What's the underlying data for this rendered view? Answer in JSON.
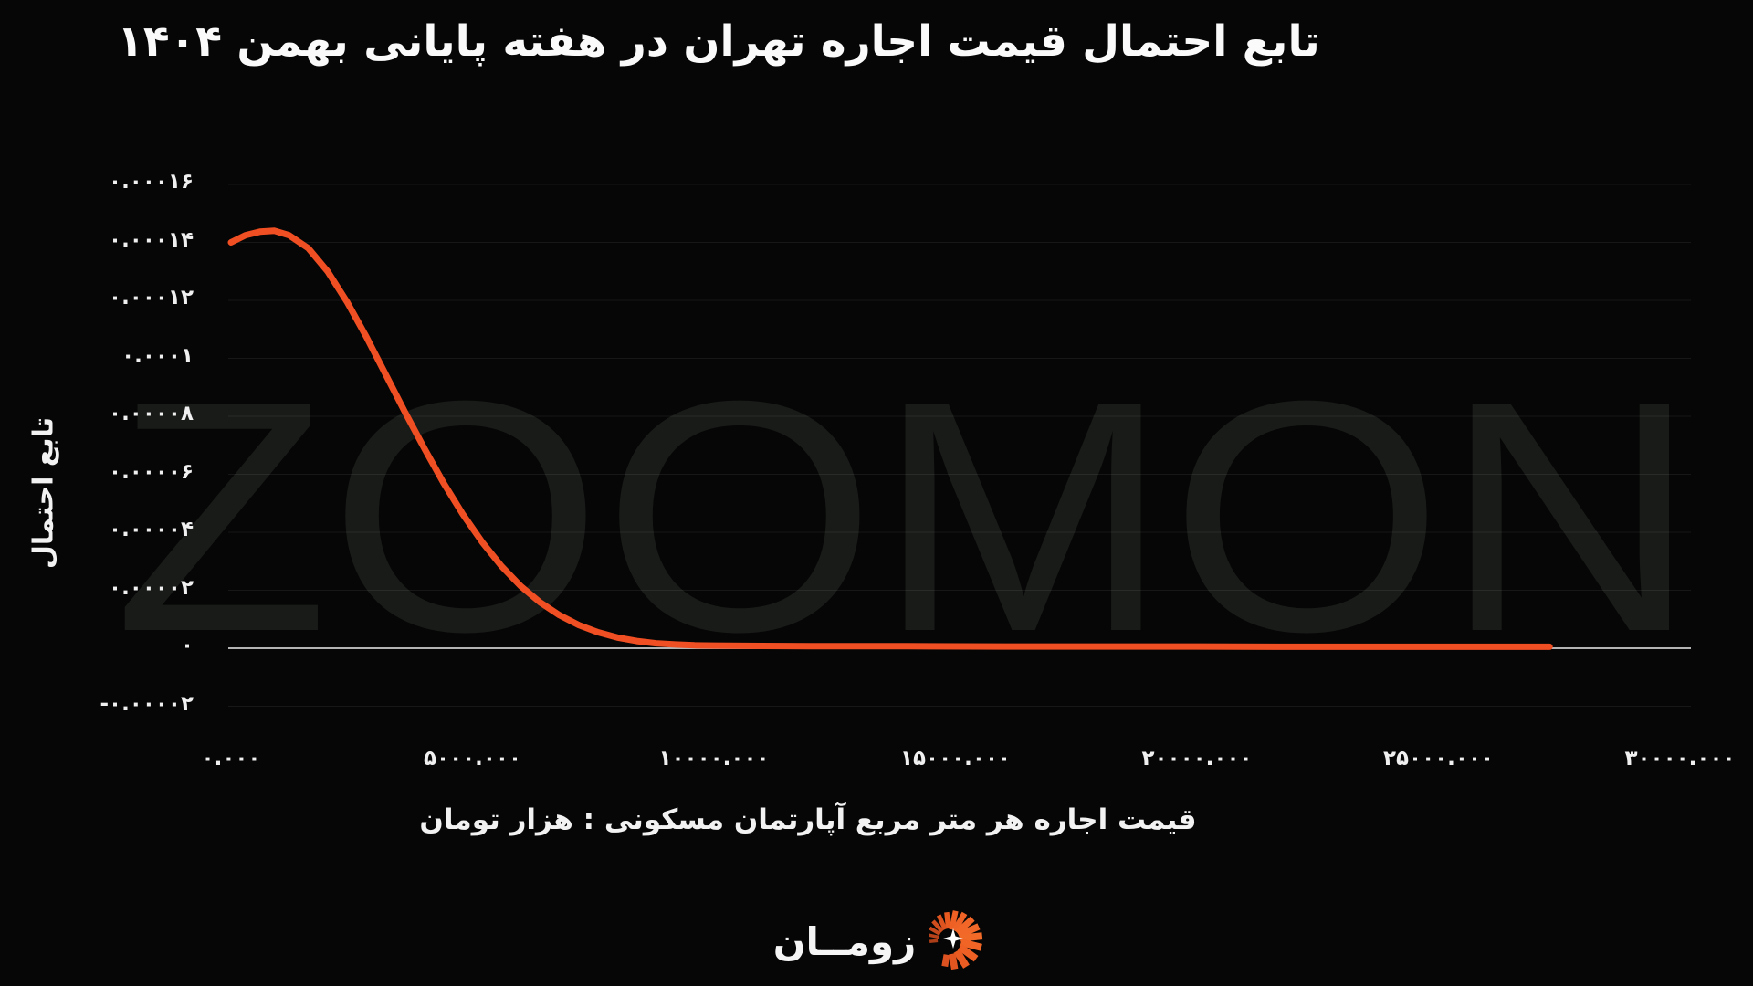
{
  "colors": {
    "background": "#050605",
    "accent": "#f04e23",
    "text": "#f2f2f2",
    "watermark": "#191b19",
    "grid": "rgba(255,255,255,0.07)",
    "zero_line": "#b3b3b3",
    "logo_orange": "#f26628"
  },
  "watermark": "ZOOMON",
  "logo": {
    "text": "زومــان"
  },
  "chart_data": {
    "type": "line",
    "title": "تابع احتمال قیمت اجاره تهران در هفته پایانی بهمن ۱۴۰۴",
    "xlabel": "قیمت اجاره هر متر مربع آپارتمان مسکونی : هزار تومان",
    "ylabel": "تابع احتمال",
    "xlim": [
      0,
      30000
    ],
    "ylim": [
      -3e-05,
      0.00017
    ],
    "grid": true,
    "legend": "none",
    "x_ticks": [
      {
        "v": 0,
        "label": "۰.۰۰۰"
      },
      {
        "v": 5000,
        "label": "۵۰۰۰.۰۰۰"
      },
      {
        "v": 10000,
        "label": "۱۰۰۰۰.۰۰۰"
      },
      {
        "v": 15000,
        "label": "۱۵۰۰۰.۰۰۰"
      },
      {
        "v": 20000,
        "label": "۲۰۰۰۰.۰۰۰"
      },
      {
        "v": 25000,
        "label": "۲۵۰۰۰.۰۰۰"
      },
      {
        "v": 30000,
        "label": "۳۰۰۰۰.۰۰۰"
      }
    ],
    "y_ticks": [
      {
        "v": 0.00016,
        "label": "۰.۰۰۰۱۶"
      },
      {
        "v": 0.00014,
        "label": "۰.۰۰۰۱۴"
      },
      {
        "v": 0.00012,
        "label": "۰.۰۰۰۱۲"
      },
      {
        "v": 0.0001,
        "label": "۰.۰۰۰۱"
      },
      {
        "v": 8e-05,
        "label": "۰.۰۰۰۰۸"
      },
      {
        "v": 6e-05,
        "label": "۰.۰۰۰۰۶"
      },
      {
        "v": 4e-05,
        "label": "۰.۰۰۰۰۴"
      },
      {
        "v": 2e-05,
        "label": "۰.۰۰۰۰۲"
      },
      {
        "v": 0,
        "label": "۰"
      },
      {
        "v": -2e-05,
        "label": "-۰.۰۰۰۰۲"
      }
    ],
    "series": [
      {
        "name": "probability-density",
        "color": "#f04e23",
        "points": [
          [
            0,
            0.00014
          ],
          [
            300,
            0.0001425
          ],
          [
            600,
            0.0001437
          ],
          [
            900,
            0.000144
          ],
          [
            1200,
            0.0001425
          ],
          [
            1600,
            0.000138
          ],
          [
            2000,
            0.00013
          ],
          [
            2400,
            0.0001195
          ],
          [
            2800,
            0.0001075
          ],
          [
            3200,
            9.45e-05
          ],
          [
            3600,
            8.15e-05
          ],
          [
            4000,
            6.9e-05
          ],
          [
            4400,
            5.7e-05
          ],
          [
            4800,
            4.62e-05
          ],
          [
            5200,
            3.66e-05
          ],
          [
            5600,
            2.83e-05
          ],
          [
            6000,
            2.14e-05
          ],
          [
            6400,
            1.58e-05
          ],
          [
            6800,
            1.14e-05
          ],
          [
            7200,
            8e-06
          ],
          [
            7600,
            5.5e-06
          ],
          [
            8000,
            3.7e-06
          ],
          [
            8400,
            2.5e-06
          ],
          [
            8800,
            1.7e-06
          ],
          [
            9200,
            1.3e-06
          ],
          [
            9600,
            1e-06
          ],
          [
            10000,
            9e-07
          ],
          [
            11000,
            8e-07
          ],
          [
            12000,
            7e-07
          ],
          [
            14000,
            7e-07
          ],
          [
            16000,
            6e-07
          ],
          [
            18000,
            6e-07
          ],
          [
            20000,
            6e-07
          ],
          [
            22000,
            5e-07
          ],
          [
            24000,
            5e-07
          ],
          [
            26000,
            5e-07
          ],
          [
            27300,
            5e-07
          ]
        ]
      }
    ]
  }
}
